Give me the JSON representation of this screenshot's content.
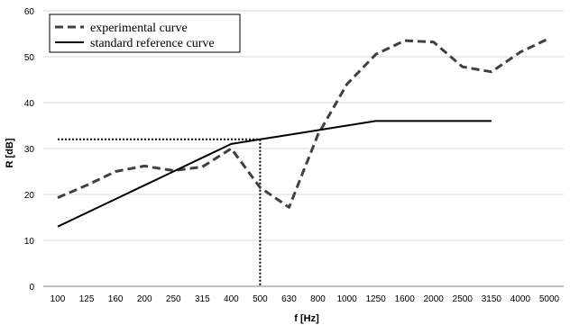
{
  "chart_data": {
    "type": "line",
    "categories": [
      "100",
      "125",
      "160",
      "200",
      "250",
      "315",
      "400",
      "500",
      "630",
      "800",
      "1000",
      "1250",
      "1600",
      "2000",
      "2500",
      "3150",
      "4000",
      "5000"
    ],
    "xlabel": "f [Hz]",
    "ylabel": "R [dB]",
    "ylim": [
      0,
      60
    ],
    "yticks": [
      0,
      10,
      20,
      30,
      40,
      50,
      60
    ],
    "grid": true,
    "legend_position": "top-left",
    "series": [
      {
        "name": "experimental curve",
        "style": "dashed",
        "color": "#404040",
        "values": [
          19.3,
          22.0,
          25.0,
          26.2,
          25.2,
          26.0,
          30.0,
          21.5,
          17.2,
          33.0,
          44.0,
          50.5,
          53.5,
          53.2,
          47.8,
          46.7,
          51.0,
          54.0
        ]
      },
      {
        "name": "standard reference curve",
        "style": "solid",
        "color": "#000000",
        "values": [
          13,
          16,
          19,
          22,
          25,
          28,
          31,
          32,
          33,
          34,
          35,
          36,
          36,
          36,
          36,
          36,
          null,
          null
        ]
      }
    ],
    "reference_marker": {
      "x": "500",
      "y": 32,
      "style": "dotted"
    }
  }
}
